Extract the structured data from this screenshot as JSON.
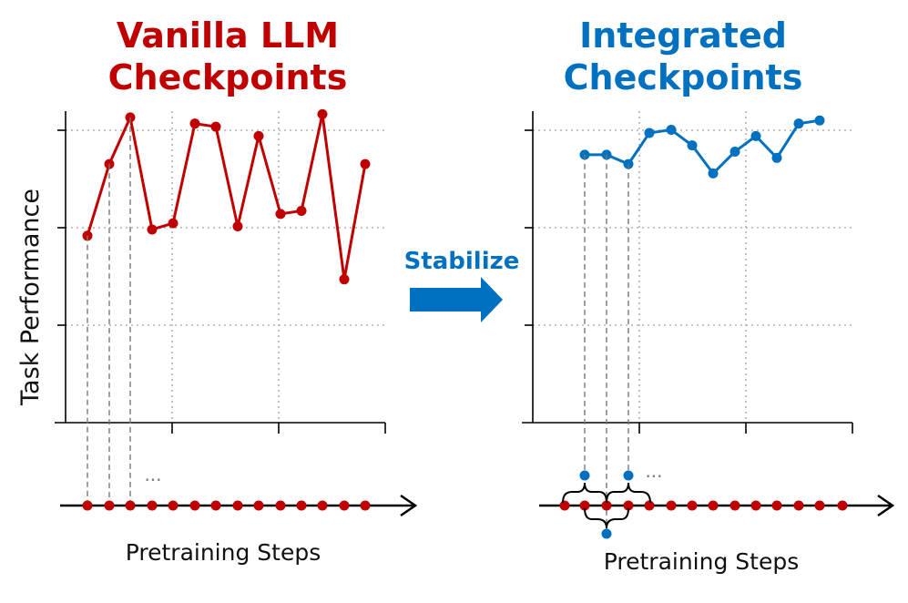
{
  "left_panel": {
    "title_line1": "Vanilla LLM",
    "title_line2": "Checkpoints",
    "ylabel": "Task  Performance",
    "xlabel": "Pretraining Steps",
    "ellipsis": "...",
    "color": "#C00000",
    "performance": [
      0.6,
      0.83,
      0.98,
      0.62,
      0.64,
      0.96,
      0.95,
      0.63,
      0.92,
      0.67,
      0.68,
      0.99,
      0.46,
      0.83
    ]
  },
  "right_panel": {
    "title_line1": "Integrated",
    "title_line2": "Checkpoints",
    "xlabel": "Pretraining Steps",
    "ellipsis": "...",
    "color": "#0070C0",
    "performance": [
      0.86,
      0.86,
      0.83,
      0.93,
      0.94,
      0.89,
      0.8,
      0.87,
      0.92,
      0.85,
      0.96,
      0.97
    ]
  },
  "arrow": {
    "label": "Stabilize",
    "color": "#0070C0"
  },
  "colors": {
    "red": "#C00000",
    "blue": "#0070C0",
    "grid": "#b0b0b0"
  }
}
